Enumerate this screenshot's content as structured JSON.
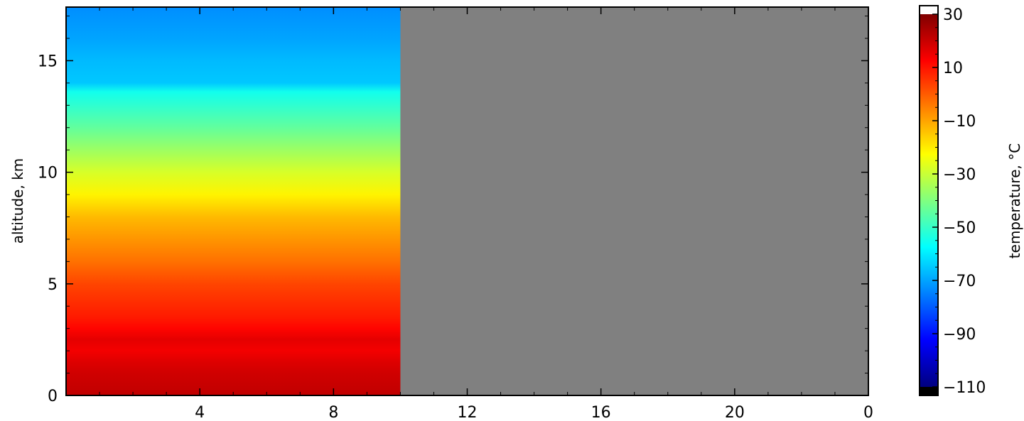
{
  "chart_data": {
    "type": "heatmap",
    "title": "",
    "xlabel": "",
    "ylabel": "altitude, km",
    "x_tick_labels": [
      "4",
      "8",
      "12",
      "16",
      "20",
      "0"
    ],
    "y_tick_labels": [
      "0",
      "5",
      "10",
      "15"
    ],
    "xlim": [
      0,
      24
    ],
    "ylim": [
      0,
      17.4
    ],
    "grid": false,
    "no_data_color": "#808080",
    "data_extent_x": [
      0,
      10
    ],
    "colormap": "jet",
    "colorbar": {
      "label": "temperature, °C",
      "range": [
        -110,
        30
      ],
      "tick_labels": [
        "30",
        "10",
        "−10",
        "−30",
        "−50",
        "−70",
        "−90",
        "−110"
      ],
      "over_color": "#ffffff",
      "under_color": "#000000"
    },
    "profile": {
      "altitude_km": [
        0,
        0.5,
        1,
        1.5,
        2,
        2.5,
        3,
        3.5,
        4,
        5,
        6,
        7,
        8,
        9,
        10,
        11,
        12,
        13,
        13.6,
        14,
        15,
        16,
        17.4
      ],
      "temperature_c": [
        21,
        20,
        19,
        17,
        14,
        16,
        12,
        9,
        7,
        3,
        -3,
        -8,
        -13,
        -21,
        -28,
        -36,
        -44,
        -51,
        -55,
        -65,
        -67,
        -70,
        -73
      ]
    }
  }
}
